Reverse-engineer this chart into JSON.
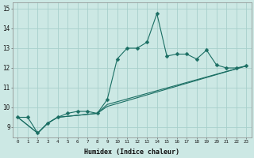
{
  "xlabel": "Humidex (Indice chaleur)",
  "xlim": [
    -0.5,
    23.5
  ],
  "ylim": [
    8.5,
    15.3
  ],
  "ytick_values": [
    9,
    10,
    11,
    12,
    13,
    14,
    15
  ],
  "bg_color": "#cce8e4",
  "line_color": "#1a6e63",
  "grid_color": "#a8d0cb",
  "series": [
    {
      "x": [
        0,
        1,
        2,
        3,
        4,
        5,
        6,
        7,
        8,
        9,
        10,
        11,
        12,
        13,
        14,
        15,
        16,
        17,
        18,
        19,
        20,
        21,
        22,
        23
      ],
      "y": [
        9.5,
        9.5,
        8.7,
        9.2,
        9.5,
        9.7,
        9.8,
        9.8,
        9.7,
        10.4,
        12.45,
        13.0,
        13.0,
        13.3,
        14.75,
        12.6,
        12.7,
        12.7,
        12.45,
        12.9,
        12.15,
        12.0,
        12.0,
        12.1
      ],
      "marker": "D",
      "markersize": 2.5
    },
    {
      "x": [
        0,
        2,
        3,
        4,
        8,
        9,
        23
      ],
      "y": [
        9.5,
        8.7,
        9.2,
        9.5,
        9.7,
        10.05,
        12.1
      ],
      "marker": null
    },
    {
      "x": [
        0,
        2,
        3,
        4,
        8,
        9,
        23
      ],
      "y": [
        9.5,
        8.7,
        9.2,
        9.5,
        9.7,
        10.15,
        12.1
      ],
      "marker": null
    }
  ]
}
